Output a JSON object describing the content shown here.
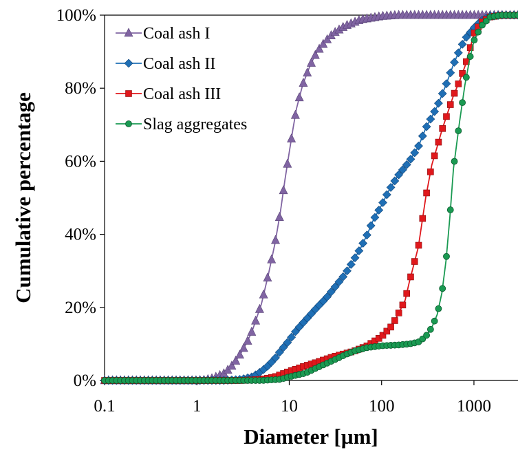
{
  "chart_data": {
    "type": "line",
    "title": "",
    "xlabel": "Diameter [µm]",
    "ylabel": "Cumulative percentage",
    "x_scale": "log",
    "xlim": [
      0.1,
      3000
    ],
    "ylim": [
      0,
      100
    ],
    "x_ticks": [
      0.1,
      1,
      10,
      100,
      1000
    ],
    "x_tick_labels": [
      "0.1",
      "1",
      "10",
      "100",
      "1000"
    ],
    "y_ticks": [
      0,
      20,
      40,
      60,
      80,
      100
    ],
    "y_tick_labels": [
      "0%",
      "20%",
      "40%",
      "60%",
      "80%",
      "100%"
    ],
    "grid": false,
    "legend_position": "top-left",
    "series": [
      {
        "name": "Coal ash I",
        "color": "#8064a2",
        "marker": "triangle",
        "points": [
          [
            0.1,
            0
          ],
          [
            1,
            0
          ],
          [
            1.2,
            0.1
          ],
          [
            1.5,
            0.6
          ],
          [
            2,
            2
          ],
          [
            2.5,
            4.5
          ],
          [
            3,
            7.5
          ],
          [
            3.5,
            10.5
          ],
          [
            4,
            13.8
          ],
          [
            5,
            21
          ],
          [
            6,
            29.5
          ],
          [
            7,
            37.5
          ],
          [
            8,
            46
          ],
          [
            9,
            55
          ],
          [
            10,
            62.5
          ],
          [
            11,
            69
          ],
          [
            12,
            74.5
          ],
          [
            14,
            81
          ],
          [
            17,
            86.5
          ],
          [
            20,
            90
          ],
          [
            25,
            93
          ],
          [
            30,
            95
          ],
          [
            40,
            97
          ],
          [
            60,
            98.8
          ],
          [
            100,
            99.7
          ],
          [
            150,
            100
          ],
          [
            3000,
            100
          ]
        ]
      },
      {
        "name": "Coal ash II",
        "color": "#1f6fb5",
        "marker": "diamond",
        "points": [
          [
            0.1,
            0
          ],
          [
            2,
            0
          ],
          [
            3,
            0.3
          ],
          [
            4,
            1
          ],
          [
            5,
            2.5
          ],
          [
            6,
            4.2
          ],
          [
            7,
            6
          ],
          [
            8,
            8
          ],
          [
            10,
            11
          ],
          [
            12,
            13.8
          ],
          [
            15,
            16.5
          ],
          [
            20,
            20
          ],
          [
            25,
            22.5
          ],
          [
            30,
            25
          ],
          [
            40,
            29
          ],
          [
            50,
            33
          ],
          [
            60,
            36.5
          ],
          [
            70,
            40
          ],
          [
            80,
            43.5
          ],
          [
            100,
            48
          ],
          [
            120,
            52
          ],
          [
            150,
            56
          ],
          [
            200,
            60
          ],
          [
            250,
            64
          ],
          [
            300,
            69
          ],
          [
            400,
            75
          ],
          [
            500,
            81
          ],
          [
            600,
            86.5
          ],
          [
            700,
            90.5
          ],
          [
            800,
            93.5
          ],
          [
            1000,
            96.5
          ],
          [
            1200,
            98.5
          ],
          [
            1500,
            99.7
          ],
          [
            2000,
            100
          ],
          [
            3000,
            100
          ]
        ]
      },
      {
        "name": "Coal ash III",
        "color": "#e0181c",
        "marker": "square",
        "points": [
          [
            0.1,
            0
          ],
          [
            3,
            0
          ],
          [
            5,
            0.3
          ],
          [
            7,
            1
          ],
          [
            10,
            2.5
          ],
          [
            15,
            4
          ],
          [
            20,
            5
          ],
          [
            30,
            6.5
          ],
          [
            50,
            8
          ],
          [
            70,
            9.5
          ],
          [
            100,
            12
          ],
          [
            130,
            15
          ],
          [
            150,
            18
          ],
          [
            180,
            22
          ],
          [
            200,
            27
          ],
          [
            250,
            36.5
          ],
          [
            300,
            50
          ],
          [
            350,
            59
          ],
          [
            400,
            64
          ],
          [
            450,
            68.5
          ],
          [
            500,
            72
          ],
          [
            600,
            78
          ],
          [
            700,
            82
          ],
          [
            800,
            86
          ],
          [
            900,
            90.5
          ],
          [
            1000,
            95
          ],
          [
            1200,
            98
          ],
          [
            1500,
            99.5
          ],
          [
            2000,
            100
          ],
          [
            3000,
            100
          ]
        ]
      },
      {
        "name": "Slag aggregates",
        "color": "#1a9a52",
        "marker": "circle",
        "points": [
          [
            0.1,
            0
          ],
          [
            5,
            0
          ],
          [
            8,
            0.3
          ],
          [
            10,
            1
          ],
          [
            15,
            2
          ],
          [
            20,
            3.5
          ],
          [
            30,
            5.5
          ],
          [
            40,
            7
          ],
          [
            50,
            8
          ],
          [
            70,
            9
          ],
          [
            100,
            9.5
          ],
          [
            150,
            9.7
          ],
          [
            200,
            10
          ],
          [
            250,
            10.5
          ],
          [
            300,
            12
          ],
          [
            350,
            14.5
          ],
          [
            400,
            18
          ],
          [
            450,
            24
          ],
          [
            500,
            33
          ],
          [
            550,
            45
          ],
          [
            600,
            58
          ],
          [
            700,
            71
          ],
          [
            800,
            81
          ],
          [
            900,
            88
          ],
          [
            1000,
            93
          ],
          [
            1200,
            97
          ],
          [
            1500,
            99.5
          ],
          [
            2000,
            100
          ],
          [
            3000,
            100
          ]
        ]
      }
    ]
  }
}
